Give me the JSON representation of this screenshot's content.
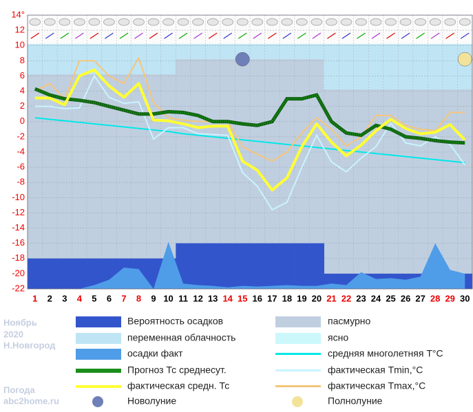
{
  "chart_data": {
    "type": "line",
    "x": [
      1,
      2,
      3,
      4,
      5,
      6,
      7,
      8,
      9,
      10,
      11,
      12,
      13,
      14,
      15,
      16,
      17,
      18,
      19,
      20,
      21,
      22,
      23,
      24,
      25,
      26,
      27,
      28,
      29,
      30
    ],
    "red_days": [
      1,
      4,
      7,
      8,
      14,
      15,
      21,
      22,
      28,
      29
    ],
    "ylim": [
      -22,
      14
    ],
    "yticks": [
      {
        "value": 14,
        "label": "14°"
      },
      12,
      10,
      8,
      6,
      4,
      2,
      0,
      -2,
      -4,
      -6,
      -8,
      -10,
      -12,
      -14,
      -16,
      -18,
      -20,
      -22
    ],
    "series": [
      {
        "name": "Вероятность осадков",
        "color": "#3355cc",
        "style": "bar",
        "values": [
          -18,
          -18,
          -18,
          -18,
          -18,
          -18,
          -18,
          -18,
          -18,
          -18,
          -16,
          -16,
          -16,
          -16,
          -16,
          -16,
          -16,
          -16,
          -16,
          -16,
          -20,
          -20,
          -20,
          -20,
          -20,
          -20,
          -20,
          -20,
          -20,
          -20
        ]
      },
      {
        "name": "осадки факт",
        "color": "#4f9de8",
        "style": "area",
        "values": [
          -22,
          -22,
          -22,
          -22,
          -21.5,
          -20.8,
          -19.2,
          -19.4,
          -22,
          -15.8,
          -21.3,
          -21.5,
          -21.6,
          -21.8,
          -21.6,
          -21.7,
          -21.6,
          -21.5,
          -21.6,
          -21.6,
          -21.3,
          -21.5,
          -19.8,
          -20.7,
          -20.6,
          -20.8,
          -20.4,
          -16,
          -19.5,
          -20
        ]
      },
      {
        "name": "средняя многолетняя T°C",
        "color": "#00e8e8",
        "style": "line",
        "values": [
          0.5,
          0.3,
          0.1,
          -0.1,
          -0.3,
          -0.5,
          -0.7,
          -0.9,
          -1.1,
          -1.3,
          -1.6,
          -1.8,
          -2,
          -2.2,
          -2.4,
          -2.6,
          -2.8,
          -3,
          -3.2,
          -3.4,
          -3.6,
          -3.8,
          -4,
          -4.2,
          -4.4,
          -4.6,
          -4.8,
          -5,
          -5.2,
          -5.4
        ]
      },
      {
        "name": "фактическая Tmin,°C",
        "color": "#c8f4ff",
        "style": "line",
        "values": [
          2,
          2,
          1.7,
          1.8,
          6,
          3.2,
          2.4,
          2.6,
          -2.3,
          -0.8,
          -0.8,
          -1.6,
          -1.7,
          -1.8,
          -6.7,
          -8.5,
          -11.6,
          -10.6,
          -6,
          -1.8,
          -5.3,
          -6.6,
          -4.8,
          -3.3,
          -0.2,
          -2.8,
          -3.2,
          -2,
          -3,
          -5.7
        ]
      },
      {
        "name": "фактическая Tmax,°C",
        "color": "#f5c57a",
        "style": "line",
        "values": [
          4,
          5,
          3,
          8,
          8,
          6,
          5,
          8.4,
          2.5,
          0.5,
          0.2,
          0,
          0,
          0,
          -3.3,
          -4.3,
          -5.2,
          -4,
          -1.5,
          0.5,
          -1,
          -3.2,
          -2,
          0.8,
          0.8,
          -0.5,
          -1,
          -1.2,
          1.2,
          1.2
        ]
      },
      {
        "name": "Прогноз Тс среднесут.",
        "color": "#1b8f1b",
        "style": "dotted",
        "values": [
          4.3,
          3.5,
          3,
          2.8,
          2.5,
          2,
          1.5,
          1,
          1,
          1.3,
          1.2,
          0.8,
          0,
          0,
          -0.3,
          -0.5,
          0,
          3,
          3,
          3.5,
          0,
          -1.5,
          -1.8,
          -0.5,
          -1,
          -2,
          -2.2,
          -2.5,
          -2.7,
          -2.8
        ]
      },
      {
        "name": "фактическая средн. Тс",
        "color": "#ffff33",
        "style": "line",
        "values": [
          3.1,
          3.1,
          2.2,
          6,
          6.8,
          4.7,
          3.2,
          5,
          0.2,
          0.1,
          -0.3,
          -0.8,
          -0.6,
          -0.6,
          -5.2,
          -6.4,
          -9,
          -7.4,
          -3.3,
          -0.3,
          -2.7,
          -4.5,
          -3.1,
          -1.2,
          0.3,
          -0.9,
          -1.6,
          -1.4,
          -0.4,
          -2.4
        ]
      }
    ],
    "sky": [
      {
        "name": "пасмурно",
        "color": "#c0cfe0"
      },
      {
        "name": "переменная облачность",
        "color": "#bfe5f5"
      },
      {
        "name": "ясно",
        "color": "#ccf8fb"
      }
    ],
    "moons": [
      {
        "name": "Новолуние",
        "day": 15,
        "value": 8.2,
        "color": "#6f7fb8"
      },
      {
        "name": "Полнолуние",
        "day": 30,
        "value": 8.2,
        "color": "#f3e39a"
      }
    ],
    "side_text": [
      "Ноябрь",
      "2020",
      "Н.Новгород",
      "Погода",
      "abc2home.ru"
    ]
  }
}
